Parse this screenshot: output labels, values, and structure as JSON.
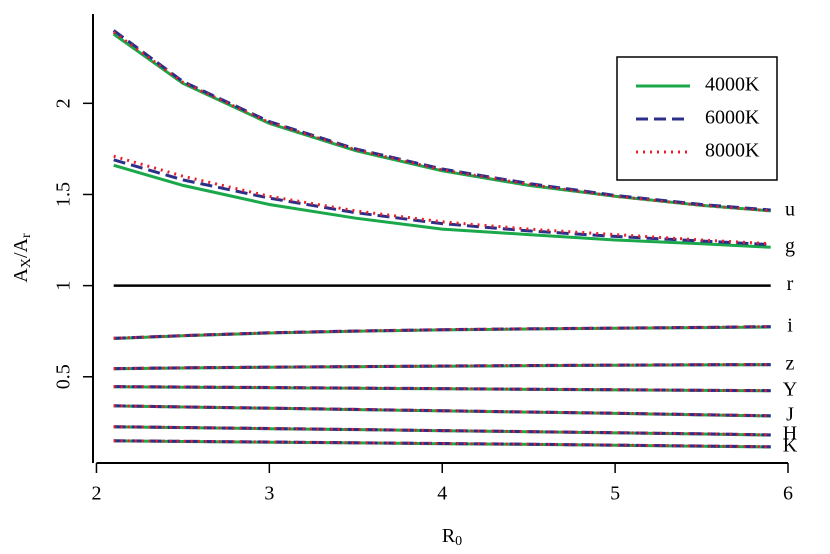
{
  "chart_data": {
    "type": "line",
    "xlabel": [
      "R",
      "0"
    ],
    "ylabel": [
      "A",
      "X",
      "/A",
      "r"
    ],
    "x": [
      2.1,
      2.5,
      3,
      3.5,
      4,
      4.5,
      5,
      5.5,
      5.9
    ],
    "xlim": [
      1.98,
      6.0
    ],
    "xticks": [
      2,
      3,
      4,
      5,
      6
    ],
    "ylim": [
      0.027,
      2.49
    ],
    "yticks": [
      0.5,
      1.0,
      1.5,
      2.0
    ],
    "legend_position": "upper right",
    "legend": [
      {
        "name": "4000K",
        "color": "#1aa84a",
        "dash": "solid"
      },
      {
        "name": "6000K",
        "color": "#2b2f8a",
        "dash": "dashed"
      },
      {
        "name": "8000K",
        "color": "#e8202a",
        "dash": "dotted"
      }
    ],
    "bands": [
      {
        "label": "u",
        "series": [
          {
            "values": [
              2.38,
              2.11,
              1.89,
              1.74,
              1.63,
              1.55,
              1.49,
              1.44,
              1.41
            ]
          },
          {
            "values": [
              2.4,
              2.12,
              1.9,
              1.75,
              1.64,
              1.56,
              1.495,
              1.445,
              1.415
            ]
          },
          {
            "values": [
              2.39,
              2.115,
              1.895,
              1.745,
              1.635,
              1.555,
              1.49,
              1.44,
              1.41
            ]
          }
        ]
      },
      {
        "label": "g",
        "series": [
          {
            "values": [
              1.66,
              1.55,
              1.445,
              1.37,
              1.31,
              1.28,
              1.25,
              1.23,
              1.21
            ]
          },
          {
            "values": [
              1.69,
              1.58,
              1.48,
              1.4,
              1.34,
              1.3,
              1.27,
              1.245,
              1.225
            ]
          },
          {
            "values": [
              1.71,
              1.6,
              1.49,
              1.41,
              1.35,
              1.31,
              1.28,
              1.25,
              1.23
            ]
          }
        ]
      },
      {
        "label": "r",
        "color": "#000000",
        "values": [
          1,
          1,
          1,
          1,
          1,
          1,
          1,
          1,
          1
        ]
      },
      {
        "label": "i",
        "series": [
          {
            "values": [
              0.71,
              0.725,
              0.74,
              0.75,
              0.757,
              0.762,
              0.766,
              0.77,
              0.773
            ]
          },
          {
            "values": [
              0.711,
              0.726,
              0.741,
              0.751,
              0.758,
              0.763,
              0.767,
              0.771,
              0.775
            ]
          },
          {
            "values": [
              0.711,
              0.726,
              0.741,
              0.751,
              0.758,
              0.763,
              0.767,
              0.771,
              0.775
            ]
          }
        ]
      },
      {
        "label": "z",
        "series": [
          {
            "values": [
              0.544,
              0.548,
              0.552,
              0.555,
              0.558,
              0.561,
              0.563,
              0.565,
              0.566
            ]
          },
          {
            "values": [
              0.545,
              0.549,
              0.553,
              0.556,
              0.559,
              0.562,
              0.564,
              0.566,
              0.567
            ]
          },
          {
            "values": [
              0.545,
              0.549,
              0.553,
              0.556,
              0.559,
              0.562,
              0.564,
              0.566,
              0.567
            ]
          }
        ]
      },
      {
        "label": "Y",
        "series": [
          {
            "values": [
              0.445,
              0.443,
              0.44,
              0.437,
              0.434,
              0.431,
              0.428,
              0.425,
              0.423
            ]
          },
          {
            "values": [
              0.446,
              0.444,
              0.441,
              0.438,
              0.435,
              0.432,
              0.429,
              0.426,
              0.424
            ]
          },
          {
            "values": [
              0.446,
              0.444,
              0.441,
              0.438,
              0.435,
              0.432,
              0.429,
              0.426,
              0.424
            ]
          }
        ]
      },
      {
        "label": "J",
        "series": [
          {
            "values": [
              0.34,
              0.334,
              0.327,
              0.32,
              0.313,
              0.306,
              0.299,
              0.291,
              0.285
            ]
          },
          {
            "values": [
              0.341,
              0.335,
              0.328,
              0.321,
              0.314,
              0.307,
              0.3,
              0.292,
              0.286
            ]
          },
          {
            "values": [
              0.341,
              0.335,
              0.328,
              0.321,
              0.314,
              0.307,
              0.3,
              0.292,
              0.286
            ]
          }
        ]
      },
      {
        "label": "H",
        "series": [
          {
            "values": [
              0.225,
              0.221,
              0.215,
              0.21,
              0.204,
              0.198,
              0.192,
              0.186,
              0.18
            ]
          },
          {
            "values": [
              0.226,
              0.222,
              0.216,
              0.211,
              0.205,
              0.199,
              0.193,
              0.187,
              0.181
            ]
          },
          {
            "values": [
              0.226,
              0.222,
              0.216,
              0.211,
              0.205,
              0.199,
              0.193,
              0.187,
              0.181
            ]
          }
        ]
      },
      {
        "label": "K",
        "series": [
          {
            "values": [
              0.148,
              0.145,
              0.141,
              0.137,
              0.133,
              0.129,
              0.124,
              0.119,
              0.115
            ]
          },
          {
            "values": [
              0.149,
              0.146,
              0.142,
              0.138,
              0.134,
              0.13,
              0.125,
              0.12,
              0.116
            ]
          },
          {
            "values": [
              0.149,
              0.146,
              0.142,
              0.138,
              0.134,
              0.13,
              0.125,
              0.12,
              0.116
            ]
          }
        ]
      }
    ]
  }
}
